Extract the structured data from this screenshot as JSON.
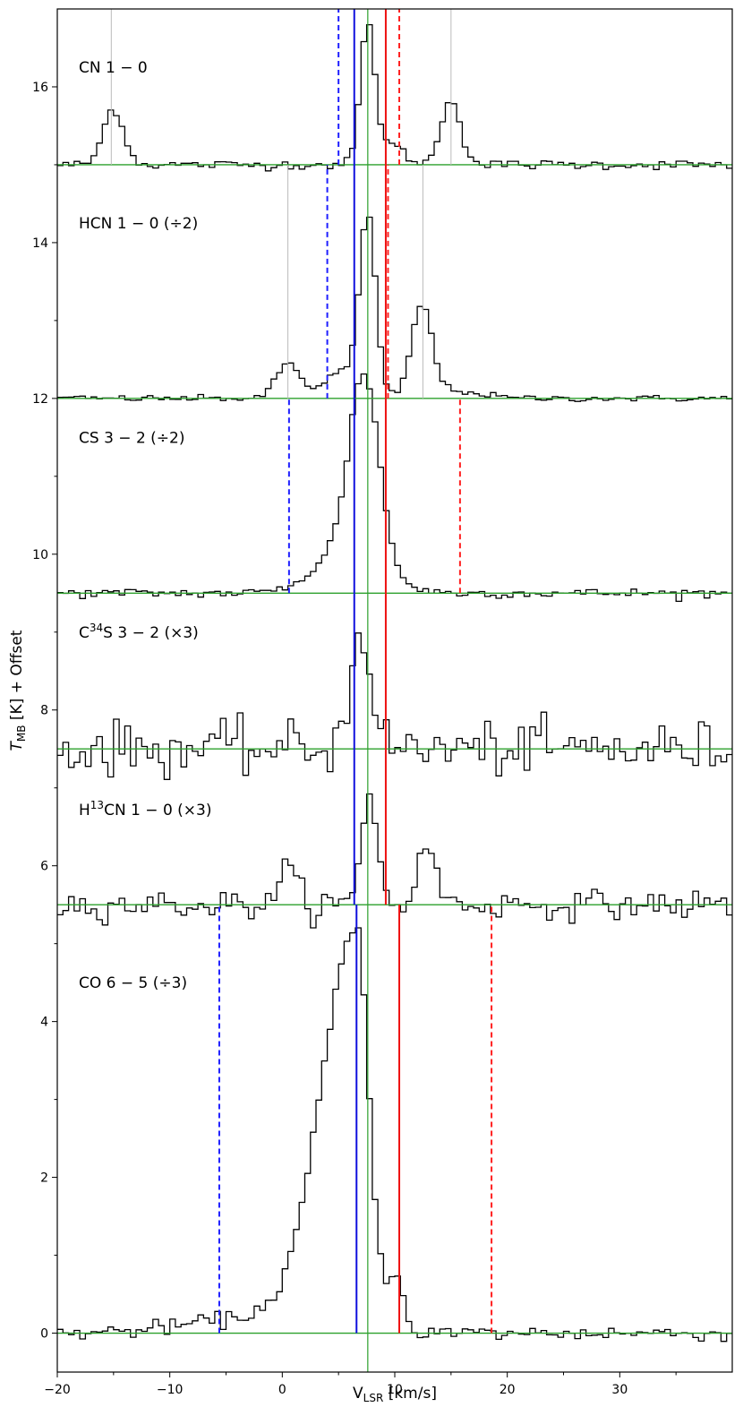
{
  "chart_data": {
    "type": "line",
    "title": "",
    "xlabel": "V",
    "xlabel_sub": "LSR",
    "xlabel_unit": " [km/s]",
    "ylabel": "T",
    "ylabel_sub": "MB",
    "ylabel_unit": " [K] + Offset",
    "xlim": [
      -20,
      40
    ],
    "ylim": [
      -0.5,
      17
    ],
    "xticks": [
      -20,
      -10,
      0,
      10,
      20,
      30
    ],
    "xtick_labels": [
      "−20",
      "−10",
      "0",
      "10",
      "20",
      "30"
    ],
    "yticks": [
      0,
      2,
      4,
      6,
      8,
      10,
      12,
      14,
      16
    ],
    "ytick_labels": [
      "0",
      "2",
      "4",
      "6",
      "8",
      "10",
      "12",
      "14",
      "16"
    ],
    "grid": false,
    "systemic_velocity": 7.6,
    "series": [
      {
        "name": "CN 1-0",
        "label_main": "CN",
        "label_trans": "1 − 0",
        "label_scale": "",
        "label_y": 16.25,
        "offset": 15.0,
        "baseline_color": "#2ca02c",
        "gray_lines": {
          "x": [
            -15.2,
            15.0
          ],
          "y": [
            15.0,
            17.0
          ]
        },
        "blue_solid": {
          "x": 6.4,
          "y": [
            15.0,
            17.0
          ]
        },
        "blue_dashed": {
          "x": 5.0,
          "y": [
            15.0,
            17.0
          ]
        },
        "red_solid": {
          "x": 9.2,
          "y": [
            15.0,
            17.0
          ]
        },
        "red_dashed": {
          "x": 10.4,
          "y": [
            15.0,
            17.0
          ]
        },
        "peaks": [
          {
            "center": -15.0,
            "amp": 0.72,
            "width": 0.9
          },
          {
            "center": 7.6,
            "amp": 1.75,
            "width": 0.65
          },
          {
            "center": 9.6,
            "amp": 0.25,
            "width": 1.2
          },
          {
            "center": 15.0,
            "amp": 0.85,
            "width": 0.85
          }
        ],
        "noise": 0.03
      },
      {
        "name": "HCN 1-0 (÷2)",
        "label_main": "HCN",
        "label_trans": "1 − 0",
        "label_scale": "(÷2)",
        "label_y": 14.25,
        "offset": 12.0,
        "baseline_color": "#2ca02c",
        "gray_lines": {
          "x": [
            0.5,
            12.5
          ],
          "y": [
            12.0,
            15.0
          ]
        },
        "blue_solid": {
          "x": 6.4,
          "y": [
            12.0,
            15.0
          ]
        },
        "blue_dashed": {
          "x": 4.0,
          "y": [
            12.0,
            15.0
          ]
        },
        "red_solid": {
          "x": 9.2,
          "y": [
            12.0,
            15.0
          ]
        },
        "red_dashed": {
          "x": 9.4,
          "y": [
            12.0,
            15.0
          ]
        },
        "peaks": [
          {
            "center": 0.5,
            "amp": 0.45,
            "width": 1.0
          },
          {
            "center": 7.6,
            "amp": 2.2,
            "width": 0.7
          },
          {
            "center": 5.5,
            "amp": 0.35,
            "width": 1.8
          },
          {
            "center": 12.4,
            "amp": 1.15,
            "width": 0.9
          },
          {
            "center": 15.0,
            "amp": 0.1,
            "width": 2.5
          }
        ],
        "noise": 0.02
      },
      {
        "name": "CS 3-2 (÷2)",
        "label_main": "CS",
        "label_trans": "3 − 2",
        "label_scale": "(÷2)",
        "label_y": 11.5,
        "offset": 9.5,
        "baseline_color": "#2ca02c",
        "gray_lines": null,
        "blue_solid": {
          "x": 6.4,
          "y": [
            9.5,
            12.0
          ]
        },
        "blue_dashed": {
          "x": 0.6,
          "y": [
            9.5,
            12.0
          ]
        },
        "red_solid": {
          "x": 9.2,
          "y": [
            9.5,
            12.0
          ]
        },
        "red_dashed": {
          "x": 15.8,
          "y": [
            9.5,
            12.0
          ]
        },
        "peaks": [
          {
            "center": 7.3,
            "amp": 2.3,
            "width": 1.3
          },
          {
            "center": 6.0,
            "amp": 0.6,
            "width": 2.8
          }
        ],
        "noise": 0.03
      },
      {
        "name": "C34S 3-2 (×3)",
        "label_main": "C",
        "label_sup": "34",
        "label_after": "S",
        "label_trans": "3 − 2",
        "label_scale": "(×3)",
        "label_y": 9.0,
        "offset": 7.5,
        "baseline_color": "#2ca02c",
        "gray_lines": null,
        "blue_solid": {
          "x": 6.4,
          "y": [
            7.5,
            9.5
          ]
        },
        "blue_dashed": null,
        "red_solid": {
          "x": 9.2,
          "y": [
            7.5,
            9.5
          ]
        },
        "red_dashed": null,
        "peaks": [
          {
            "center": 7.0,
            "amp": 1.55,
            "width": 0.9
          }
        ],
        "noise": 0.17
      },
      {
        "name": "H13CN 1-0 (×3)",
        "label_main": "H",
        "label_sup": "13",
        "label_after": "CN",
        "label_trans": "1 − 0",
        "label_scale": "(×3)",
        "label_y": 6.72,
        "offset": 5.5,
        "baseline_color": "#2ca02c",
        "gray_lines": null,
        "blue_solid": {
          "x": 6.4,
          "y": [
            5.5,
            7.5
          ]
        },
        "blue_dashed": null,
        "red_solid": {
          "x": 9.2,
          "y": [
            5.5,
            7.5
          ]
        },
        "red_dashed": null,
        "peaks": [
          {
            "center": 0.5,
            "amp": 0.45,
            "width": 0.8
          },
          {
            "center": 7.8,
            "amp": 1.4,
            "width": 0.7
          },
          {
            "center": 12.9,
            "amp": 0.75,
            "width": 0.8
          }
        ],
        "noise": 0.09
      },
      {
        "name": "CO 6-5 (÷3)",
        "label_main": "CO",
        "label_trans": "6 − 5",
        "label_scale": "(÷3)",
        "label_y": 4.5,
        "offset": 0.0,
        "baseline_color": "#2ca02c",
        "gray_lines": null,
        "blue_solid": {
          "x": 6.6,
          "y": [
            0.0,
            5.5
          ]
        },
        "blue_dashed": {
          "x": -5.6,
          "y": [
            0.0,
            5.5
          ]
        },
        "red_solid": {
          "x": 10.4,
          "y": [
            0.0,
            5.5
          ]
        },
        "red_dashed": {
          "x": 18.6,
          "y": [
            0.0,
            5.5
          ]
        },
        "peaks": [
          {
            "center": 6.6,
            "amp": 5.1,
            "width": 1.1,
            "skew_left": 2.8
          },
          {
            "center": 10.0,
            "amp": 0.75,
            "width": 0.7
          },
          {
            "center": -2.0,
            "amp": 0.2,
            "width": 6.0
          }
        ],
        "noise": 0.05
      }
    ],
    "systemic_line_color": "#2ca02c"
  }
}
